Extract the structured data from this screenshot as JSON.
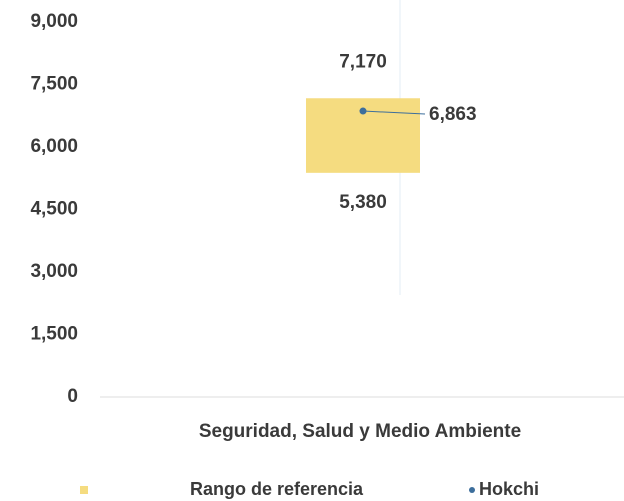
{
  "chart_data": {
    "type": "range_bar",
    "categories": [
      "Seguridad, Salud y Medio Ambiente"
    ],
    "series": [
      {
        "name": "Rango de referencia",
        "color": "#f5dc80",
        "low": [
          5380
        ],
        "high": [
          7170
        ],
        "low_labels": [
          "5,380"
        ],
        "high_labels": [
          "7,170"
        ]
      },
      {
        "name": "Hokchi",
        "color": "#3c6e9c",
        "values": [
          6863
        ],
        "value_labels": [
          "6,863"
        ]
      }
    ],
    "ylim": [
      0,
      9000
    ],
    "yticks": [
      0,
      {
        "value": 1500,
        "label": "1,500"
      },
      {
        "value": 3000,
        "label": "3,000"
      },
      {
        "value": 4500,
        "label": "4,500"
      },
      {
        "value": 6000,
        "label": "6,000"
      },
      {
        "value": 7500,
        "label": "7,500"
      },
      {
        "value": 9000,
        "label": "9,000"
      }
    ],
    "legend": "bottom"
  }
}
